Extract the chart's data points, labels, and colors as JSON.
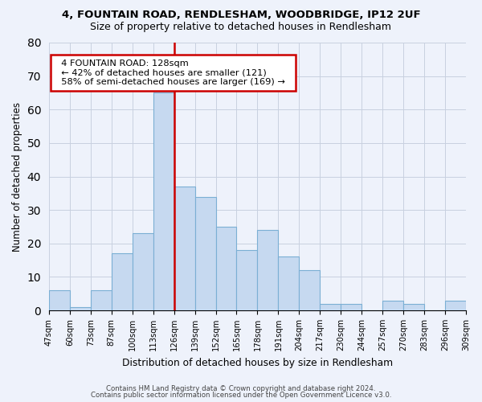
{
  "title1": "4, FOUNTAIN ROAD, RENDLESHAM, WOODBRIDGE, IP12 2UF",
  "title2": "Size of property relative to detached houses in Rendlesham",
  "xlabel": "Distribution of detached houses by size in Rendlesham",
  "ylabel": "Number of detached properties",
  "bin_labels": [
    "47sqm",
    "60sqm",
    "73sqm",
    "87sqm",
    "100sqm",
    "113sqm",
    "126sqm",
    "139sqm",
    "152sqm",
    "165sqm",
    "178sqm",
    "191sqm",
    "204sqm",
    "217sqm",
    "230sqm",
    "244sqm",
    "257sqm",
    "270sqm",
    "283sqm",
    "296sqm",
    "309sqm"
  ],
  "bar_values": [
    6,
    1,
    6,
    17,
    23,
    65,
    37,
    34,
    25,
    18,
    24,
    16,
    12,
    2,
    2,
    0,
    3,
    2,
    0,
    3
  ],
  "bar_color": "#c6d9f0",
  "bar_edge_color": "#7bafd4",
  "vline_x": 6,
  "vline_color": "#cc0000",
  "annotation_title": "4 FOUNTAIN ROAD: 128sqm",
  "annotation_line1": "← 42% of detached houses are smaller (121)",
  "annotation_line2": "58% of semi-detached houses are larger (169) →",
  "annotation_box_color": "#ffffff",
  "annotation_box_edge": "#cc0000",
  "footer1": "Contains HM Land Registry data © Crown copyright and database right 2024.",
  "footer2": "Contains public sector information licensed under the Open Government Licence v3.0.",
  "ylim": [
    0,
    80
  ],
  "yticks": [
    0,
    10,
    20,
    30,
    40,
    50,
    60,
    70,
    80
  ],
  "bg_color": "#eef2fb"
}
